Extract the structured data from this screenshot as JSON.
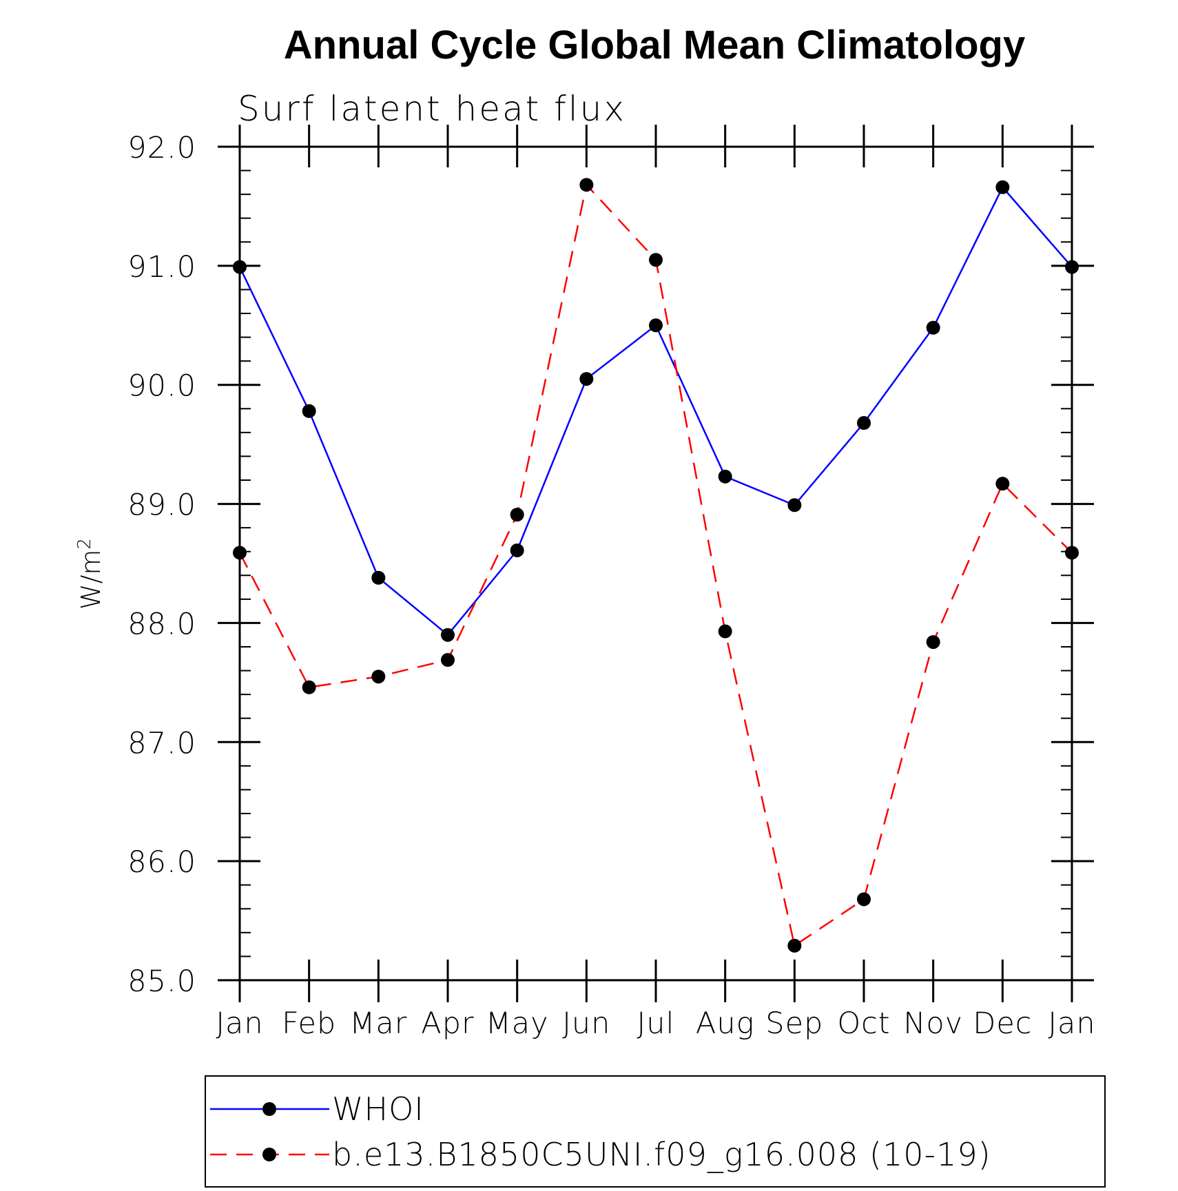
{
  "chart_data": {
    "type": "line",
    "title": "Annual Cycle Global Mean Climatology",
    "subtitle": "Surf latent heat flux",
    "ylabel": "W/m",
    "ylabel_sup": "2",
    "ylim": [
      85.0,
      92.0
    ],
    "yticks": [
      "85.0",
      "86.0",
      "87.0",
      "88.0",
      "89.0",
      "90.0",
      "91.0",
      "92.0"
    ],
    "categories": [
      "Jan",
      "Feb",
      "Mar",
      "Apr",
      "May",
      "Jun",
      "Jul",
      "Aug",
      "Sep",
      "Oct",
      "Nov",
      "Dec",
      "Jan"
    ],
    "grid": false,
    "legend_position": "bottom",
    "series": [
      {
        "name": "WHOI",
        "color": "#0000ff",
        "dash": "solid",
        "marker": "filled-circle",
        "values": [
          90.99,
          89.78,
          88.38,
          87.9,
          88.61,
          90.05,
          90.5,
          89.23,
          88.99,
          89.68,
          90.48,
          91.66,
          90.99
        ]
      },
      {
        "name": "b.e13.B1850C5UNI.f09_g16.008 (10-19)",
        "color": "#ff0000",
        "dash": "dashed",
        "marker": "filled-circle",
        "values": [
          88.59,
          87.46,
          87.55,
          87.69,
          88.91,
          91.68,
          91.05,
          87.93,
          85.29,
          85.68,
          87.84,
          89.17,
          88.59
        ]
      }
    ]
  }
}
